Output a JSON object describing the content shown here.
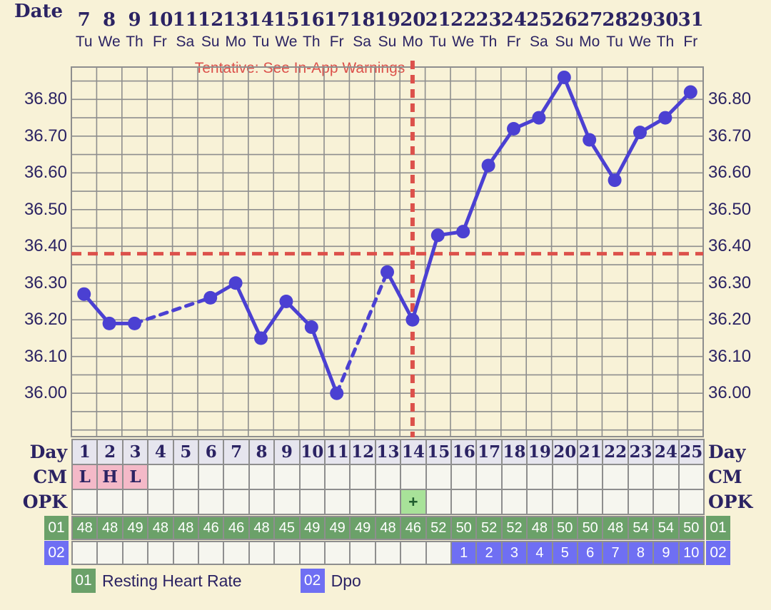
{
  "header": {
    "date_label": "Date",
    "dates": [
      7,
      8,
      9,
      10,
      11,
      12,
      13,
      14,
      15,
      16,
      17,
      18,
      19,
      20,
      21,
      22,
      23,
      24,
      25,
      26,
      27,
      28,
      29,
      30,
      31
    ],
    "weekdays": [
      "Tu",
      "We",
      "Th",
      "Fr",
      "Sa",
      "Su",
      "Mo",
      "Tu",
      "We",
      "Th",
      "Fr",
      "Sa",
      "Su",
      "Mo",
      "Tu",
      "We",
      "Th",
      "Fr",
      "Sa",
      "Su",
      "Mo",
      "Tu",
      "We",
      "Th",
      "Fr"
    ]
  },
  "chart_data": {
    "type": "line",
    "note": "Tentative: See In-App Warnings",
    "x_days": [
      1,
      2,
      3,
      4,
      5,
      6,
      7,
      8,
      9,
      10,
      11,
      12,
      13,
      14,
      15,
      16,
      17,
      18,
      19,
      20,
      21,
      22,
      23,
      24,
      25
    ],
    "series": [
      {
        "name": "Temperature",
        "values": [
          36.27,
          36.19,
          36.19,
          null,
          null,
          36.26,
          36.3,
          36.15,
          36.25,
          36.18,
          36.0,
          null,
          36.33,
          36.2,
          36.43,
          36.44,
          36.62,
          36.72,
          36.75,
          36.86,
          36.69,
          36.58,
          36.71,
          36.75,
          36.82
        ]
      }
    ],
    "missing_days_dashed": [
      [
        3,
        6
      ],
      [
        11,
        13
      ]
    ],
    "yticks": [
      "36.80",
      "36.70",
      "36.60",
      "36.50",
      "36.40",
      "36.30",
      "36.20",
      "36.10",
      "36.00"
    ],
    "ylim": [
      35.88,
      36.89
    ],
    "grid_step": 0.05,
    "coverline": 36.38,
    "ovulation_line_day": 14,
    "legend_position": "bottom",
    "colors": {
      "line": "#4B40D2",
      "reference": "#DC514B",
      "grid": "#8E8E8E",
      "background": "#F8F2D7"
    }
  },
  "table": {
    "day": {
      "label": "Day",
      "values": [
        "1",
        "2",
        "3",
        "4",
        "5",
        "6",
        "7",
        "8",
        "9",
        "10",
        "11",
        "12",
        "13",
        "14",
        "15",
        "16",
        "17",
        "18",
        "19",
        "20",
        "21",
        "22",
        "23",
        "24",
        "25"
      ]
    },
    "cm": {
      "label": "CM",
      "values": [
        "L",
        "H",
        "L",
        "",
        "",
        "",
        "",
        "",
        "",
        "",
        "",
        "",
        "",
        "",
        "",
        "",
        "",
        "",
        "",
        "",
        "",
        "",
        "",
        "",
        ""
      ]
    },
    "opk": {
      "label": "OPK",
      "values": [
        "",
        "",
        "",
        "",
        "",
        "",
        "",
        "",
        "",
        "",
        "",
        "",
        "",
        "+",
        "",
        "",
        "",
        "",
        "",
        "",
        "",
        "",
        "",
        "",
        ""
      ]
    },
    "row01": {
      "label": "01",
      "name": "Resting Heart Rate",
      "values": [
        "48",
        "48",
        "49",
        "48",
        "48",
        "46",
        "46",
        "48",
        "45",
        "49",
        "49",
        "49",
        "48",
        "46",
        "52",
        "50",
        "52",
        "52",
        "48",
        "50",
        "50",
        "48",
        "54",
        "54",
        "50"
      ]
    },
    "row02": {
      "label": "02",
      "name": "Dpo",
      "values": [
        "",
        "",
        "",
        "",
        "",
        "",
        "",
        "",
        "",
        "",
        "",
        "",
        "",
        "",
        "",
        "1",
        "2",
        "3",
        "4",
        "5",
        "6",
        "7",
        "8",
        "9",
        "10"
      ]
    }
  },
  "legend": [
    {
      "id": "01",
      "label": "Resting Heart Rate",
      "color": "#6BA169"
    },
    {
      "id": "02",
      "label": "Dpo",
      "color": "#6F6FF3"
    }
  ]
}
